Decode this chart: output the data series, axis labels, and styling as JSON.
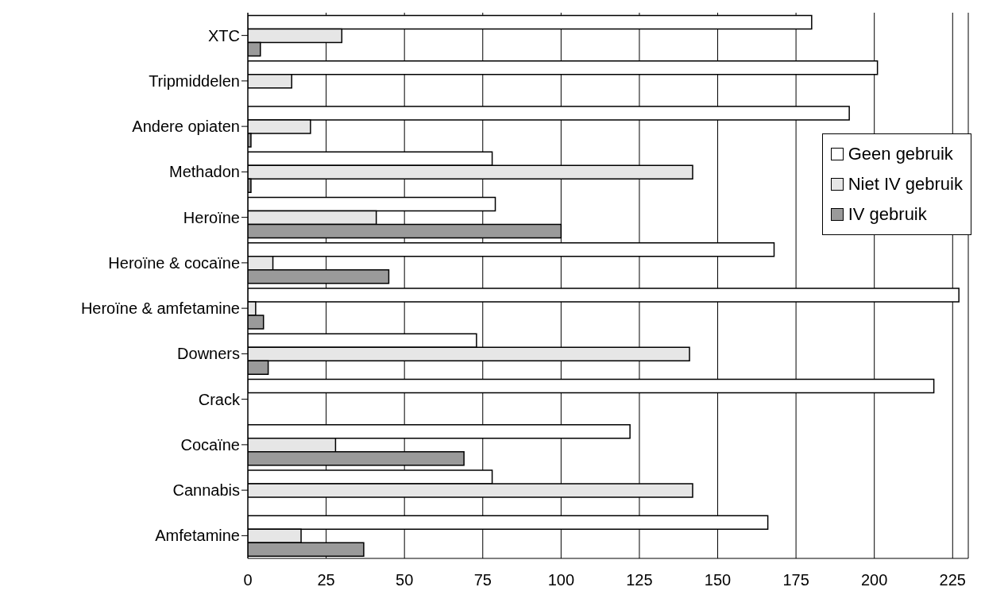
{
  "chart_data": {
    "type": "bar",
    "orientation": "horizontal",
    "categories": [
      "XTC",
      "Tripmiddelen",
      "Andere opiaten",
      "Methadon",
      "Heroïne",
      "Heroïne & cocaïne",
      "Heroïne & amfetamine",
      "Downers",
      "Crack",
      "Cocaïne",
      "Cannabis",
      "Amfetamine"
    ],
    "series": [
      {
        "name": "Geen gebruik",
        "color": "#ffffff",
        "values": [
          180,
          201,
          192,
          78,
          79,
          168,
          227,
          73,
          219,
          122,
          78,
          166
        ]
      },
      {
        "name": "Niet IV gebruik",
        "color": "#e6e6e6",
        "values": [
          30,
          14,
          20,
          142,
          41,
          8,
          2.5,
          141,
          0,
          28,
          142,
          17
        ]
      },
      {
        "name": "IV gebruik",
        "color": "#9a9a9a",
        "values": [
          4,
          0,
          1,
          1,
          100,
          45,
          5,
          6.5,
          0,
          69,
          0,
          37
        ]
      }
    ],
    "xlim": [
      0,
      230
    ],
    "xticks": [
      0,
      25,
      50,
      75,
      100,
      125,
      150,
      175,
      200,
      225
    ],
    "grid": "x",
    "legend": "right"
  }
}
